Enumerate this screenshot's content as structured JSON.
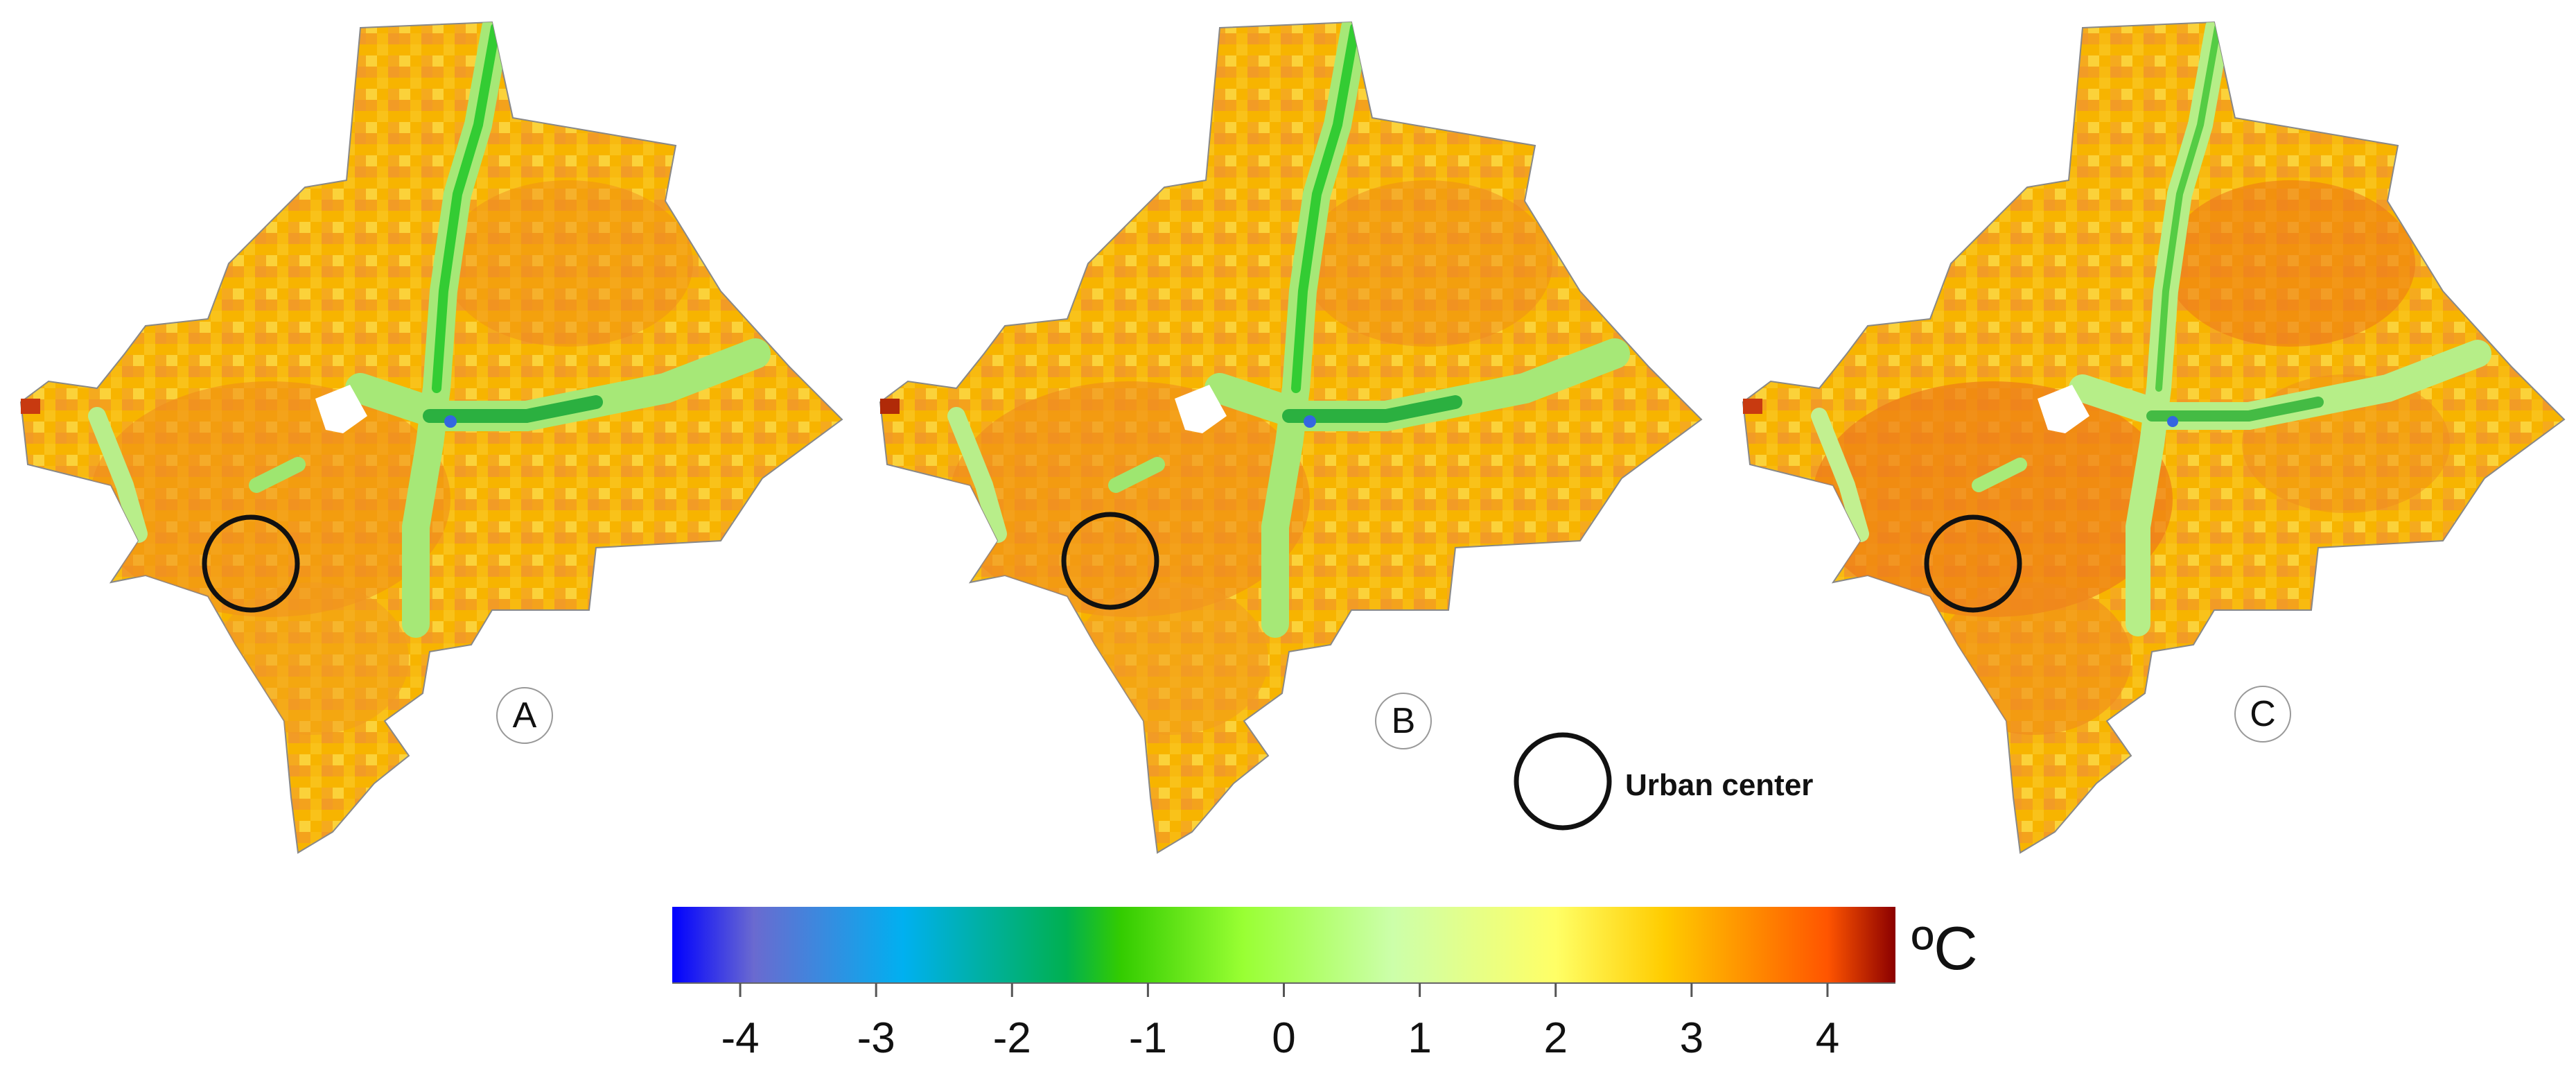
{
  "panels": [
    {
      "id": "A",
      "label": "A"
    },
    {
      "id": "B",
      "label": "B"
    },
    {
      "id": "C",
      "label": "C"
    }
  ],
  "legend": {
    "urban_center_label": "Urban center"
  },
  "colorbar": {
    "unit": "ºC",
    "min": -4.5,
    "max": 4.5,
    "ticks": [
      {
        "value": -4,
        "label": "-4"
      },
      {
        "value": -3,
        "label": "-3"
      },
      {
        "value": -2,
        "label": "-2"
      },
      {
        "value": -1,
        "label": "-1"
      },
      {
        "value": 0,
        "label": "0"
      },
      {
        "value": 1,
        "label": "1"
      },
      {
        "value": 2,
        "label": "2"
      },
      {
        "value": 3,
        "label": "3"
      },
      {
        "value": 4,
        "label": "4"
      }
    ],
    "stops": [
      {
        "value": -4.5,
        "color": "#0000ff"
      },
      {
        "value": -3.9,
        "color": "#6a6ad0"
      },
      {
        "value": -2.8,
        "color": "#00b0f0"
      },
      {
        "value": -1.6,
        "color": "#00b050"
      },
      {
        "value": -1.2,
        "color": "#33cc00"
      },
      {
        "value": -0.3,
        "color": "#99ff33"
      },
      {
        "value": 0.8,
        "color": "#ccffaa"
      },
      {
        "value": 2.0,
        "color": "#ffff66"
      },
      {
        "value": 2.8,
        "color": "#ffcc00"
      },
      {
        "value": 4.0,
        "color": "#ff5500"
      },
      {
        "value": 4.5,
        "color": "#8b0000"
      }
    ]
  }
}
